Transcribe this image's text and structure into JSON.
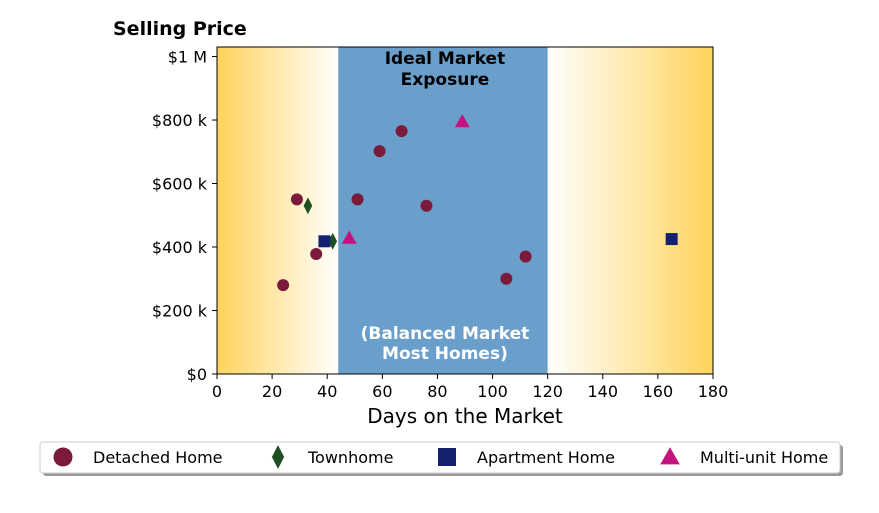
{
  "chart_data": {
    "type": "scatter",
    "title": "Selling Price",
    "xlabel": "Days on the Market",
    "ylabel": "",
    "xlim": [
      0,
      180
    ],
    "ylim": [
      0,
      1030000
    ],
    "x_ticks": [
      0,
      20,
      40,
      60,
      80,
      100,
      120,
      140,
      160,
      180
    ],
    "x_tick_labels": [
      "0",
      "20",
      "40",
      "60",
      "80",
      "100",
      "120",
      "140",
      "160",
      "180"
    ],
    "y_ticks": [
      0,
      200000,
      400000,
      600000,
      800000,
      1000000
    ],
    "y_tick_labels": [
      "$0",
      "$200 k",
      "$400 k",
      "$600 k",
      "$800 k",
      "$1 M"
    ],
    "grid": false,
    "legend_position": "bottom",
    "ideal_range": [
      44,
      120
    ],
    "ideal_color": "#6a9fcb",
    "edge_gradient_color": "#ffd35c",
    "annotations": {
      "top": [
        "Ideal Market",
        "Exposure"
      ],
      "bottom": [
        "(Balanced Market",
        "Most Homes)"
      ]
    },
    "series": [
      {
        "name": "Detached Home",
        "marker": "circle",
        "color": "#7b1a3b",
        "points": [
          [
            24,
            280000
          ],
          [
            29,
            550000
          ],
          [
            36,
            378000
          ],
          [
            51,
            550000
          ],
          [
            59,
            702000
          ],
          [
            67,
            765000
          ],
          [
            76,
            530000
          ],
          [
            105,
            300000
          ],
          [
            112,
            370000
          ]
        ]
      },
      {
        "name": "Townhome",
        "marker": "diamond",
        "color": "#1d5023",
        "points": [
          [
            33,
            530000
          ],
          [
            42,
            418000
          ]
        ]
      },
      {
        "name": "Apartment Home",
        "marker": "square",
        "color": "#13216e",
        "points": [
          [
            39,
            418000
          ],
          [
            165,
            425000
          ]
        ]
      },
      {
        "name": "Multi-unit Home",
        "marker": "triangle",
        "color": "#c2137f",
        "points": [
          [
            48,
            428000
          ],
          [
            89,
            795000
          ]
        ]
      }
    ]
  }
}
